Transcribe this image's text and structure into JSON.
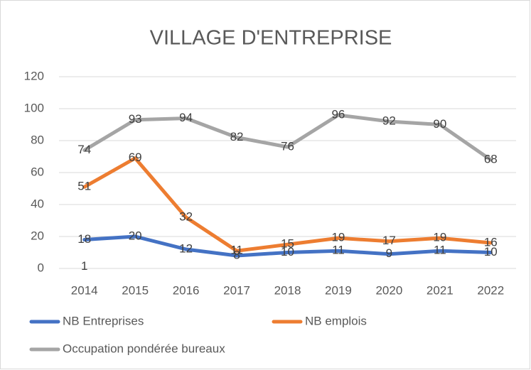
{
  "chart_data": {
    "type": "line",
    "title": "VILLAGE D'ENTREPRISE",
    "categories": [
      "2014",
      "2015",
      "2016",
      "2017",
      "2018",
      "2019",
      "2020",
      "2021",
      "2022"
    ],
    "series": [
      {
        "name": "NB Entreprises",
        "color": "#4472c4",
        "values": [
          18,
          20,
          12,
          8,
          10,
          11,
          9,
          11,
          10
        ]
      },
      {
        "name": "NB emplois",
        "color": "#ed7d31",
        "values": [
          51,
          69,
          32,
          11,
          15,
          19,
          17,
          19,
          16
        ]
      },
      {
        "name": "Occupation pondérée bureaux",
        "color": "#a5a5a5",
        "values": [
          74,
          93,
          94,
          82,
          76,
          96,
          92,
          90,
          68
        ]
      }
    ],
    "annotations": [
      {
        "text": "1",
        "x": "2014",
        "y": 1
      }
    ],
    "ylim": [
      0,
      120
    ],
    "yticks": [
      0,
      20,
      40,
      60,
      80,
      100,
      120
    ],
    "grid": true,
    "legend": "bottom"
  }
}
